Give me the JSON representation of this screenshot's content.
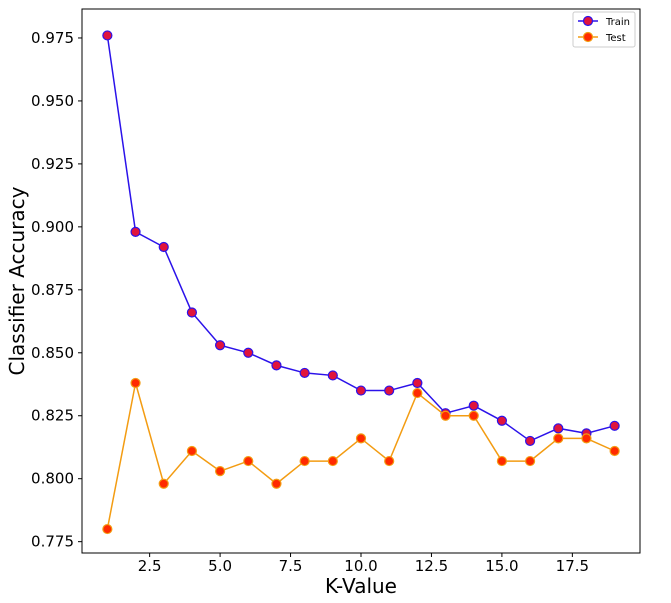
{
  "chart_data": {
    "type": "line",
    "title": "",
    "xlabel": "K-Value",
    "ylabel": "Classifier Accuracy",
    "x": [
      1,
      2,
      3,
      4,
      5,
      6,
      7,
      8,
      9,
      10,
      11,
      12,
      13,
      14,
      15,
      16,
      17,
      18,
      19
    ],
    "xlim": [
      0.1,
      19.9
    ],
    "ylim": [
      0.7705,
      0.9865
    ],
    "xticks": [
      2.5,
      5.0,
      7.5,
      10.0,
      12.5,
      15.0,
      17.5
    ],
    "xtick_labels": [
      "2.5",
      "5.0",
      "7.5",
      "10.0",
      "12.5",
      "15.0",
      "17.5"
    ],
    "yticks": [
      0.775,
      0.8,
      0.825,
      0.85,
      0.875,
      0.9,
      0.925,
      0.95,
      0.975
    ],
    "ytick_labels": [
      "0.775",
      "0.800",
      "0.825",
      "0.850",
      "0.875",
      "0.900",
      "0.925",
      "0.950",
      "0.975"
    ],
    "grid": false,
    "legend_position": "top-right",
    "series": [
      {
        "name": "Train",
        "line_color": "#2b12ea",
        "marker_fill": "#e0143c",
        "marker_edge": "#2b12ea",
        "values": [
          0.976,
          0.898,
          0.892,
          0.866,
          0.853,
          0.85,
          0.845,
          0.842,
          0.841,
          0.835,
          0.835,
          0.838,
          0.826,
          0.829,
          0.823,
          0.815,
          0.82,
          0.818,
          0.821
        ]
      },
      {
        "name": "Test",
        "line_color": "#f39c12",
        "marker_fill": "#ff2a00",
        "marker_edge": "#f39c12",
        "values": [
          0.78,
          0.838,
          0.798,
          0.811,
          0.803,
          0.807,
          0.798,
          0.807,
          0.807,
          0.816,
          0.807,
          0.834,
          0.825,
          0.825,
          0.807,
          0.807,
          0.816,
          0.816,
          0.811
        ]
      }
    ]
  }
}
